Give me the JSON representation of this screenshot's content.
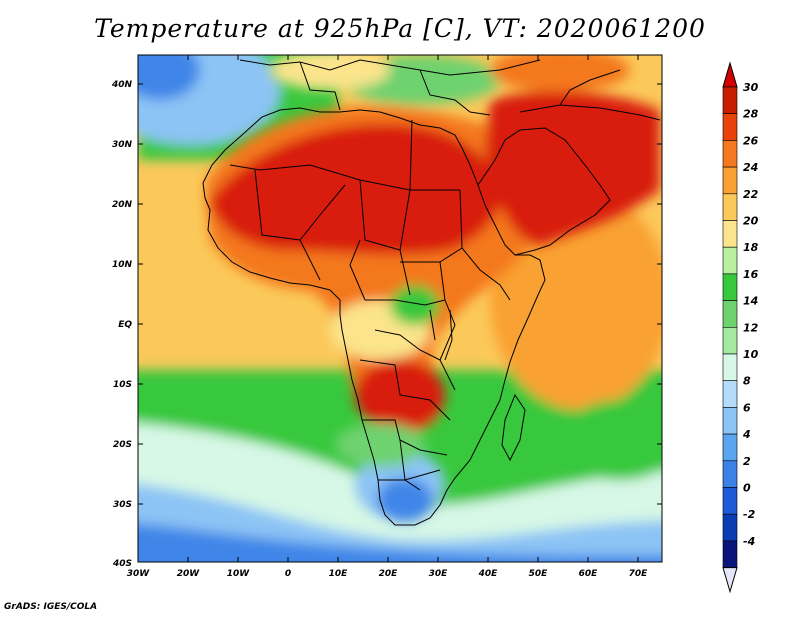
{
  "title": "Temperature at 925hPa [C], VT: 2020061200",
  "credit": "GrADS: IGES/COLA",
  "lat_labels": [
    "40N",
    "30N",
    "20N",
    "10N",
    "EQ",
    "10S",
    "20S",
    "30S",
    "40S"
  ],
  "lon_labels": [
    "30W",
    "20W",
    "10W",
    "0",
    "10E",
    "20E",
    "30E",
    "40E",
    "50E",
    "60E",
    "70E"
  ],
  "colorbar": {
    "labels": [
      "30",
      "28",
      "26",
      "24",
      "22",
      "20",
      "18",
      "16",
      "14",
      "12",
      "10",
      "8",
      "6",
      "4",
      "2",
      "0",
      "-2",
      "-4"
    ],
    "colors": [
      "#c81e00",
      "#e8410a",
      "#f4781e",
      "#f9a132",
      "#fbc95a",
      "#fbe48c",
      "#b8f0a0",
      "#37c83c",
      "#6ed26e",
      "#a5e9a0",
      "#d7f8e6",
      "#b4dcfa",
      "#8cc4f5",
      "#5aa5ef",
      "#3c82e6",
      "#1e5ad7",
      "#0a3cb4",
      "#0a147d"
    ],
    "over_color": "#d20000",
    "under_color": "#e6e6fa"
  },
  "palette": {
    "ocean_cold": "#3f86e8",
    "ocean_mid": "#8cc4f5",
    "ocean_cool": "#d7f8e6",
    "ocean_green": "#37c83c",
    "ocean_warm": "#fbc95a",
    "ocean_hot": "#f9a132",
    "land_hot": "#d81e08",
    "land_warm": "#f4781e",
    "land_mild": "#fbe48c",
    "land_cool": "#6ed26e",
    "border": "#000000"
  }
}
